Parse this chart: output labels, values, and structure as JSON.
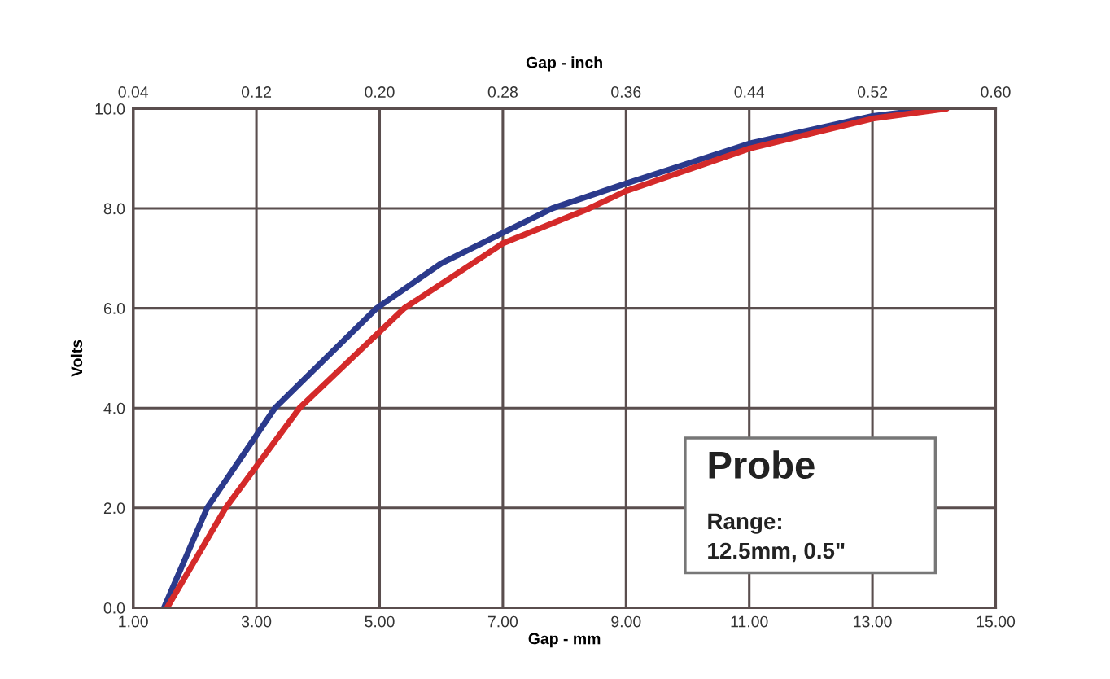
{
  "chart_data": {
    "type": "line",
    "xlabel": "Gap - mm",
    "ylabel": "Volts",
    "x2label": "Gap - inch",
    "xlim": [
      1.0,
      15.0
    ],
    "xticks": [
      {
        "value": 1,
        "label": "1.00"
      },
      {
        "value": 3,
        "label": "3.00"
      },
      {
        "value": 5,
        "label": "5.00"
      },
      {
        "value": 7,
        "label": "7.00"
      },
      {
        "value": 9,
        "label": "9.00"
      },
      {
        "value": 11,
        "label": "11.00"
      },
      {
        "value": 13,
        "label": "13.00"
      },
      {
        "value": 15,
        "label": "15.00"
      }
    ],
    "x2lim": [
      0.04,
      0.6
    ],
    "x2ticks": [
      0.04,
      0.12,
      {
        "value": 0.2,
        "label": "0.20"
      },
      0.28,
      0.36,
      0.44,
      0.52,
      {
        "value": 0.6,
        "label": "0.60"
      }
    ],
    "ylim": [
      0.0,
      10.0
    ],
    "yticks": [
      {
        "value": 0,
        "label": "0.0"
      },
      {
        "value": 2,
        "label": "2.0"
      },
      {
        "value": 4,
        "label": "4.0"
      },
      {
        "value": 6,
        "label": "6.0"
      },
      {
        "value": 8,
        "label": "8.0"
      },
      {
        "value": 10,
        "label": "10.0"
      }
    ],
    "grid": true,
    "series": [
      {
        "color": "#2b3a8c",
        "x": [
          1.5,
          2.2,
          3.3,
          4.95,
          6.0,
          7.8,
          9.0,
          11.0,
          13.0,
          14.0
        ],
        "values": [
          0.0,
          2.0,
          4.0,
          6.0,
          6.9,
          8.0,
          8.5,
          9.3,
          9.85,
          10.0
        ]
      },
      {
        "color": "#d42a2a",
        "x": [
          1.55,
          2.5,
          3.7,
          5.4,
          7.0,
          8.4,
          9.0,
          11.0,
          13.0,
          14.2
        ],
        "values": [
          0.0,
          2.0,
          4.0,
          6.0,
          7.3,
          8.0,
          8.35,
          9.2,
          9.8,
          10.0
        ]
      }
    ],
    "annotations": [
      "Probe",
      "Range:\n12.5mm, 0.5\""
    ]
  }
}
